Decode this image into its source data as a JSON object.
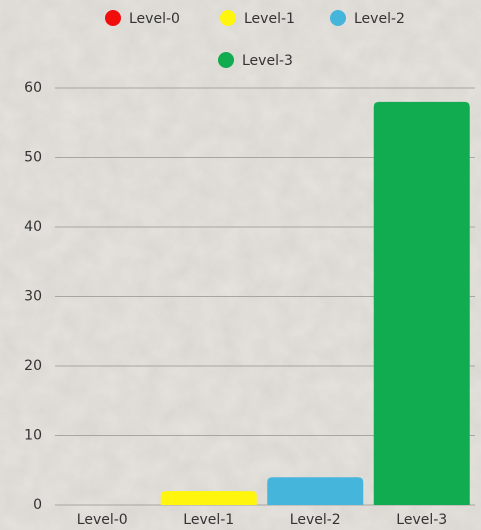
{
  "chart_data": {
    "type": "bar",
    "categories": [
      "Level-0",
      "Level-1",
      "Level-2",
      "Level-3"
    ],
    "values": [
      0,
      2,
      4,
      58
    ],
    "colors": [
      "#f20d0d",
      "#fff50d",
      "#45b5dc",
      "#11ac4f"
    ],
    "ylim": [
      0,
      60
    ],
    "yticks": [
      0,
      10,
      20,
      30,
      40,
      50,
      60
    ],
    "grid": true,
    "legend": "top"
  }
}
